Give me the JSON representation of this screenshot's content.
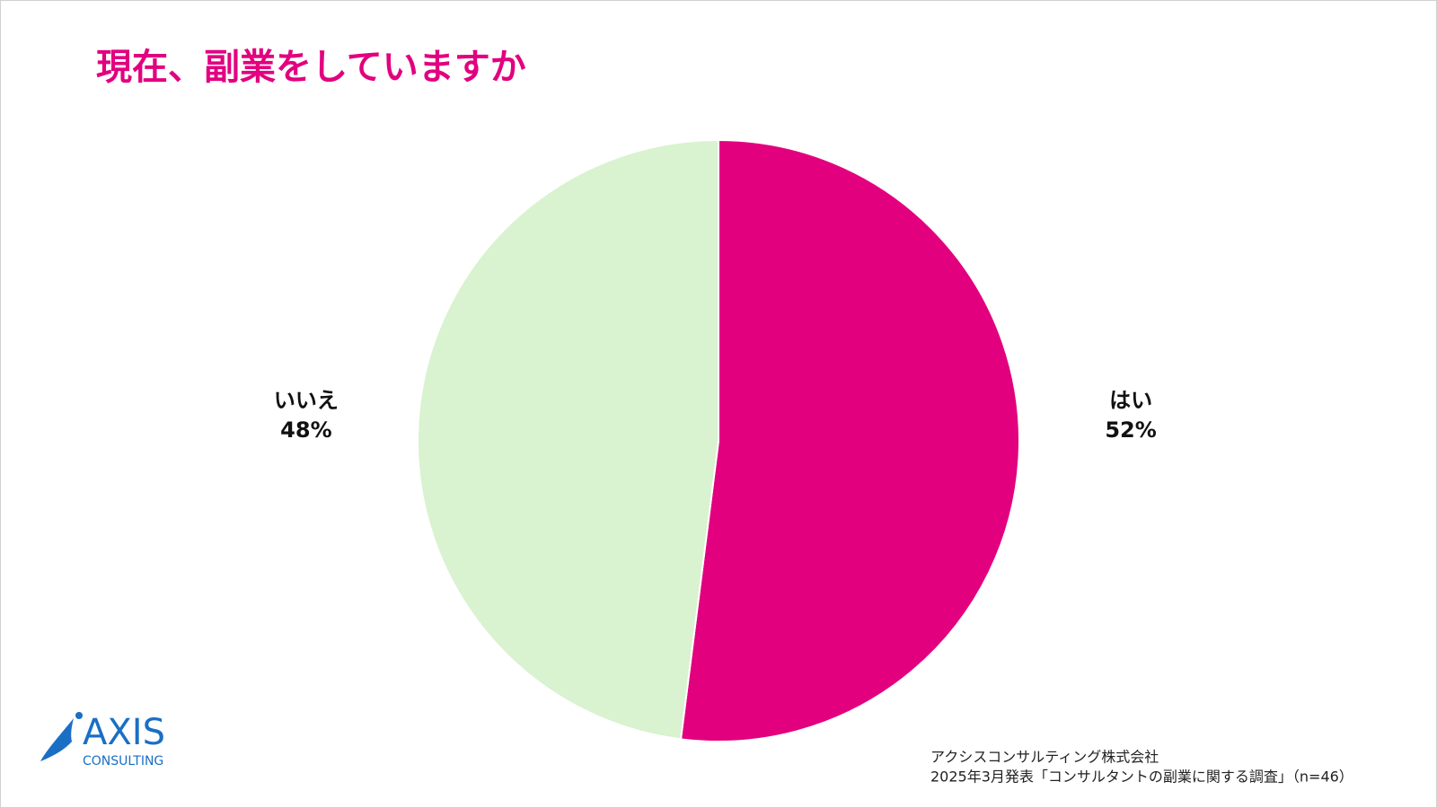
{
  "chart_data": {
    "type": "pie",
    "title": "現在、副業をしていますか",
    "categories": [
      "はい",
      "いいえ"
    ],
    "values": [
      52,
      48
    ],
    "value_labels": [
      "52%",
      "48%"
    ],
    "colors": [
      "#e2007f",
      "#d9f2d0"
    ]
  },
  "footer": {
    "company": "アクシスコンサルティング株式会社",
    "source": "2025年3月発表「コンサルタントの副業に関する調査」（n=46）"
  },
  "logo": {
    "name": "AXIS",
    "subtitle": "CONSULTING"
  }
}
